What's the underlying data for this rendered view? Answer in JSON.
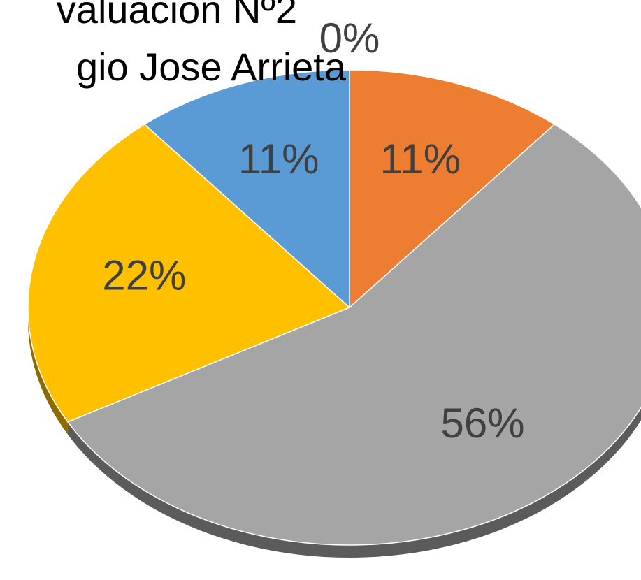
{
  "chart_data": {
    "type": "pie",
    "title_lines": [
      "valuacion Nº2",
      "gio Jose Arrieta"
    ],
    "values": [
      0,
      11,
      56,
      22,
      11
    ],
    "value_labels": [
      "0%",
      "11%",
      "56%",
      "22%",
      "11%"
    ],
    "colors": [
      "#4472c4",
      "#ed7d31",
      "#a5a5a5",
      "#ffc000",
      "#5b9bd5"
    ]
  }
}
